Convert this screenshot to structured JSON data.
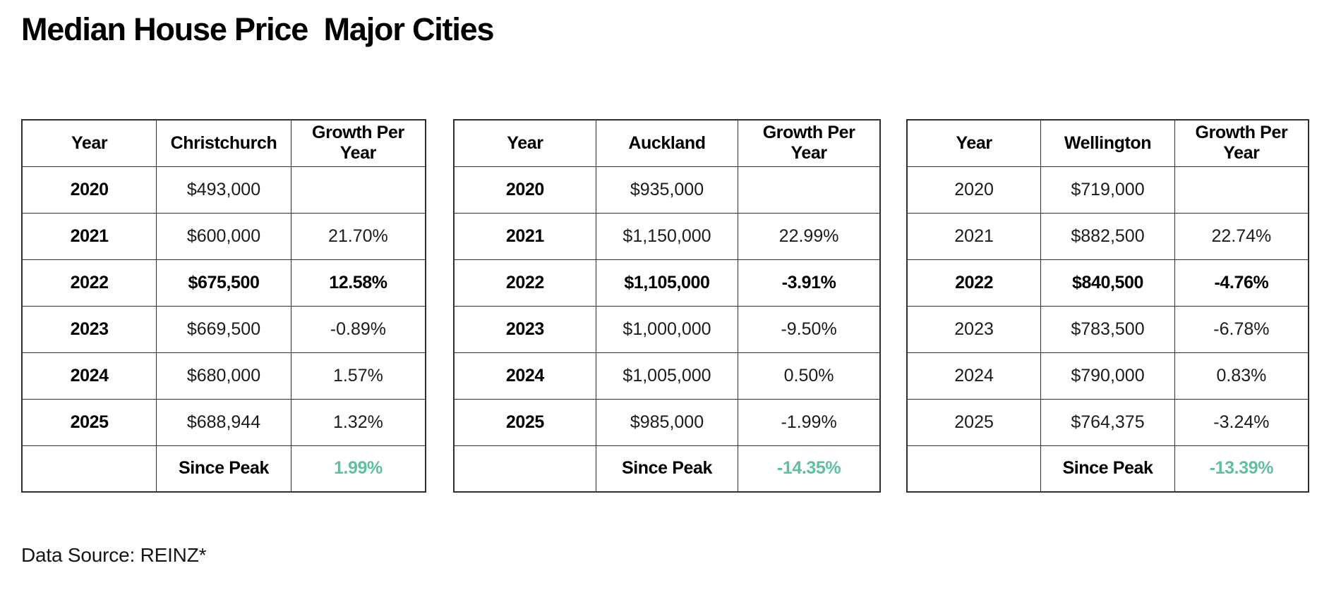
{
  "title": "Median House Price  Major Cities",
  "footer": {
    "text": "Data Source: REINZ*"
  },
  "colors": {
    "accent_green": "#5fbf9f",
    "border": "#2f2f2f"
  },
  "tables": [
    {
      "headers": [
        "Year",
        "Christchurch",
        "Growth Per Year"
      ],
      "rows": [
        {
          "year": "2020",
          "price": "$493,000",
          "growth": ""
        },
        {
          "year": "2021",
          "price": "$600,000",
          "growth": "21.70%"
        },
        {
          "year": "2022",
          "price": "$675,500",
          "growth": "12.58%"
        },
        {
          "year": "2023",
          "price": "$669,500",
          "growth": "-0.89%"
        },
        {
          "year": "2024",
          "price": "$680,000",
          "growth": "1.57%"
        },
        {
          "year": "2025",
          "price": "$688,944",
          "growth": "1.32%"
        }
      ],
      "since_peak": {
        "label": "Since Peak",
        "value": "1.99%"
      }
    },
    {
      "headers": [
        "Year",
        "Auckland",
        "Growth Per Year"
      ],
      "rows": [
        {
          "year": "2020",
          "price": "$935,000",
          "growth": ""
        },
        {
          "year": "2021",
          "price": "$1,150,000",
          "growth": "22.99%"
        },
        {
          "year": "2022",
          "price": "$1,105,000",
          "growth": "-3.91%"
        },
        {
          "year": "2023",
          "price": "$1,000,000",
          "growth": "-9.50%"
        },
        {
          "year": "2024",
          "price": "$1,005,000",
          "growth": "0.50%"
        },
        {
          "year": "2025",
          "price": "$985,000",
          "growth": "-1.99%"
        }
      ],
      "since_peak": {
        "label": "Since Peak",
        "value": "-14.35%"
      }
    },
    {
      "headers": [
        "Year",
        "Wellington",
        "Growth Per Year"
      ],
      "rows": [
        {
          "year": "2020",
          "price": "$719,000",
          "growth": ""
        },
        {
          "year": "2021",
          "price": "$882,500",
          "growth": "22.74%"
        },
        {
          "year": "2022",
          "price": "$840,500",
          "growth": "-4.76%"
        },
        {
          "year": "2023",
          "price": "$783,500",
          "growth": "-6.78%"
        },
        {
          "year": "2024",
          "price": "$790,000",
          "growth": "0.83%"
        },
        {
          "year": "2025",
          "price": "$764,375",
          "growth": "-3.24%"
        }
      ],
      "since_peak": {
        "label": "Since Peak",
        "value": "-13.39%"
      }
    }
  ]
}
